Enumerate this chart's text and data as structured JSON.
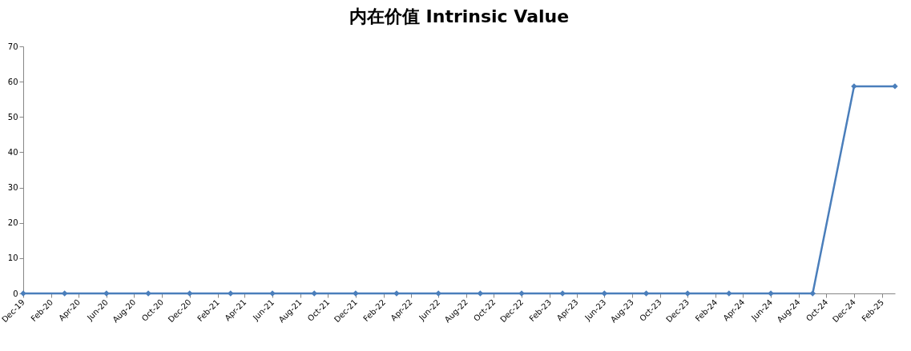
{
  "chart_data": {
    "type": "line",
    "title": "内在价值 Intrinsic Value",
    "x": [
      "2019-12",
      "2020-03",
      "2020-06",
      "2020-09",
      "2020-12",
      "2021-03",
      "2021-06",
      "2021-09",
      "2021-12",
      "2022-03",
      "2022-06",
      "2022-09",
      "2022-12",
      "2023-03",
      "2023-06",
      "2023-09",
      "2023-12",
      "2024-03",
      "2024-06",
      "2024-09",
      "2024-12",
      "2025-03"
    ],
    "series": [
      {
        "color": "#4a7ebb",
        "values": [
          0,
          0,
          0,
          0,
          0,
          0,
          0,
          0,
          0,
          0,
          0,
          0,
          0,
          0,
          0,
          0,
          0,
          0,
          0,
          0,
          58.7,
          58.7
        ]
      }
    ],
    "xlim": [
      "2019-12",
      "2025-03"
    ],
    "xticks": [
      {
        "value": "2019-12",
        "label": "Dec-19"
      },
      {
        "value": "2020-02",
        "label": "Feb-20"
      },
      {
        "value": "2020-04",
        "label": "Apr-20"
      },
      {
        "value": "2020-06",
        "label": "Jun-20"
      },
      {
        "value": "2020-08",
        "label": "Aug-20"
      },
      {
        "value": "2020-10",
        "label": "Oct-20"
      },
      {
        "value": "2020-12",
        "label": "Dec-20"
      },
      {
        "value": "2021-02",
        "label": "Feb-21"
      },
      {
        "value": "2021-04",
        "label": "Apr-21"
      },
      {
        "value": "2021-06",
        "label": "Jun-21"
      },
      {
        "value": "2021-08",
        "label": "Aug-21"
      },
      {
        "value": "2021-10",
        "label": "Oct-21"
      },
      {
        "value": "2021-12",
        "label": "Dec-21"
      },
      {
        "value": "2022-02",
        "label": "Feb-22"
      },
      {
        "value": "2022-04",
        "label": "Apr-22"
      },
      {
        "value": "2022-06",
        "label": "Jun-22"
      },
      {
        "value": "2022-08",
        "label": "Aug-22"
      },
      {
        "value": "2022-10",
        "label": "Oct-22"
      },
      {
        "value": "2022-12",
        "label": "Dec-22"
      },
      {
        "value": "2023-02",
        "label": "Feb-23"
      },
      {
        "value": "2023-04",
        "label": "Apr-23"
      },
      {
        "value": "2023-06",
        "label": "Jun-23"
      },
      {
        "value": "2023-08",
        "label": "Aug-23"
      },
      {
        "value": "2023-10",
        "label": "Oct-23"
      },
      {
        "value": "2023-12",
        "label": "Dec-23"
      },
      {
        "value": "2024-02",
        "label": "Feb-24"
      },
      {
        "value": "2024-04",
        "label": "Apr-24"
      },
      {
        "value": "2024-06",
        "label": "Jun-24"
      },
      {
        "value": "2024-08",
        "label": "Aug-24"
      },
      {
        "value": "2024-10",
        "label": "Oct-24"
      },
      {
        "value": "2024-12",
        "label": "Dec-24"
      },
      {
        "value": "2025-02",
        "label": "Feb-25"
      }
    ],
    "ylim": [
      0,
      70
    ],
    "yticks": [
      0,
      10,
      20,
      30,
      40,
      50,
      60,
      70
    ],
    "grid": false,
    "marker": "diamond",
    "line_style": "solid"
  }
}
